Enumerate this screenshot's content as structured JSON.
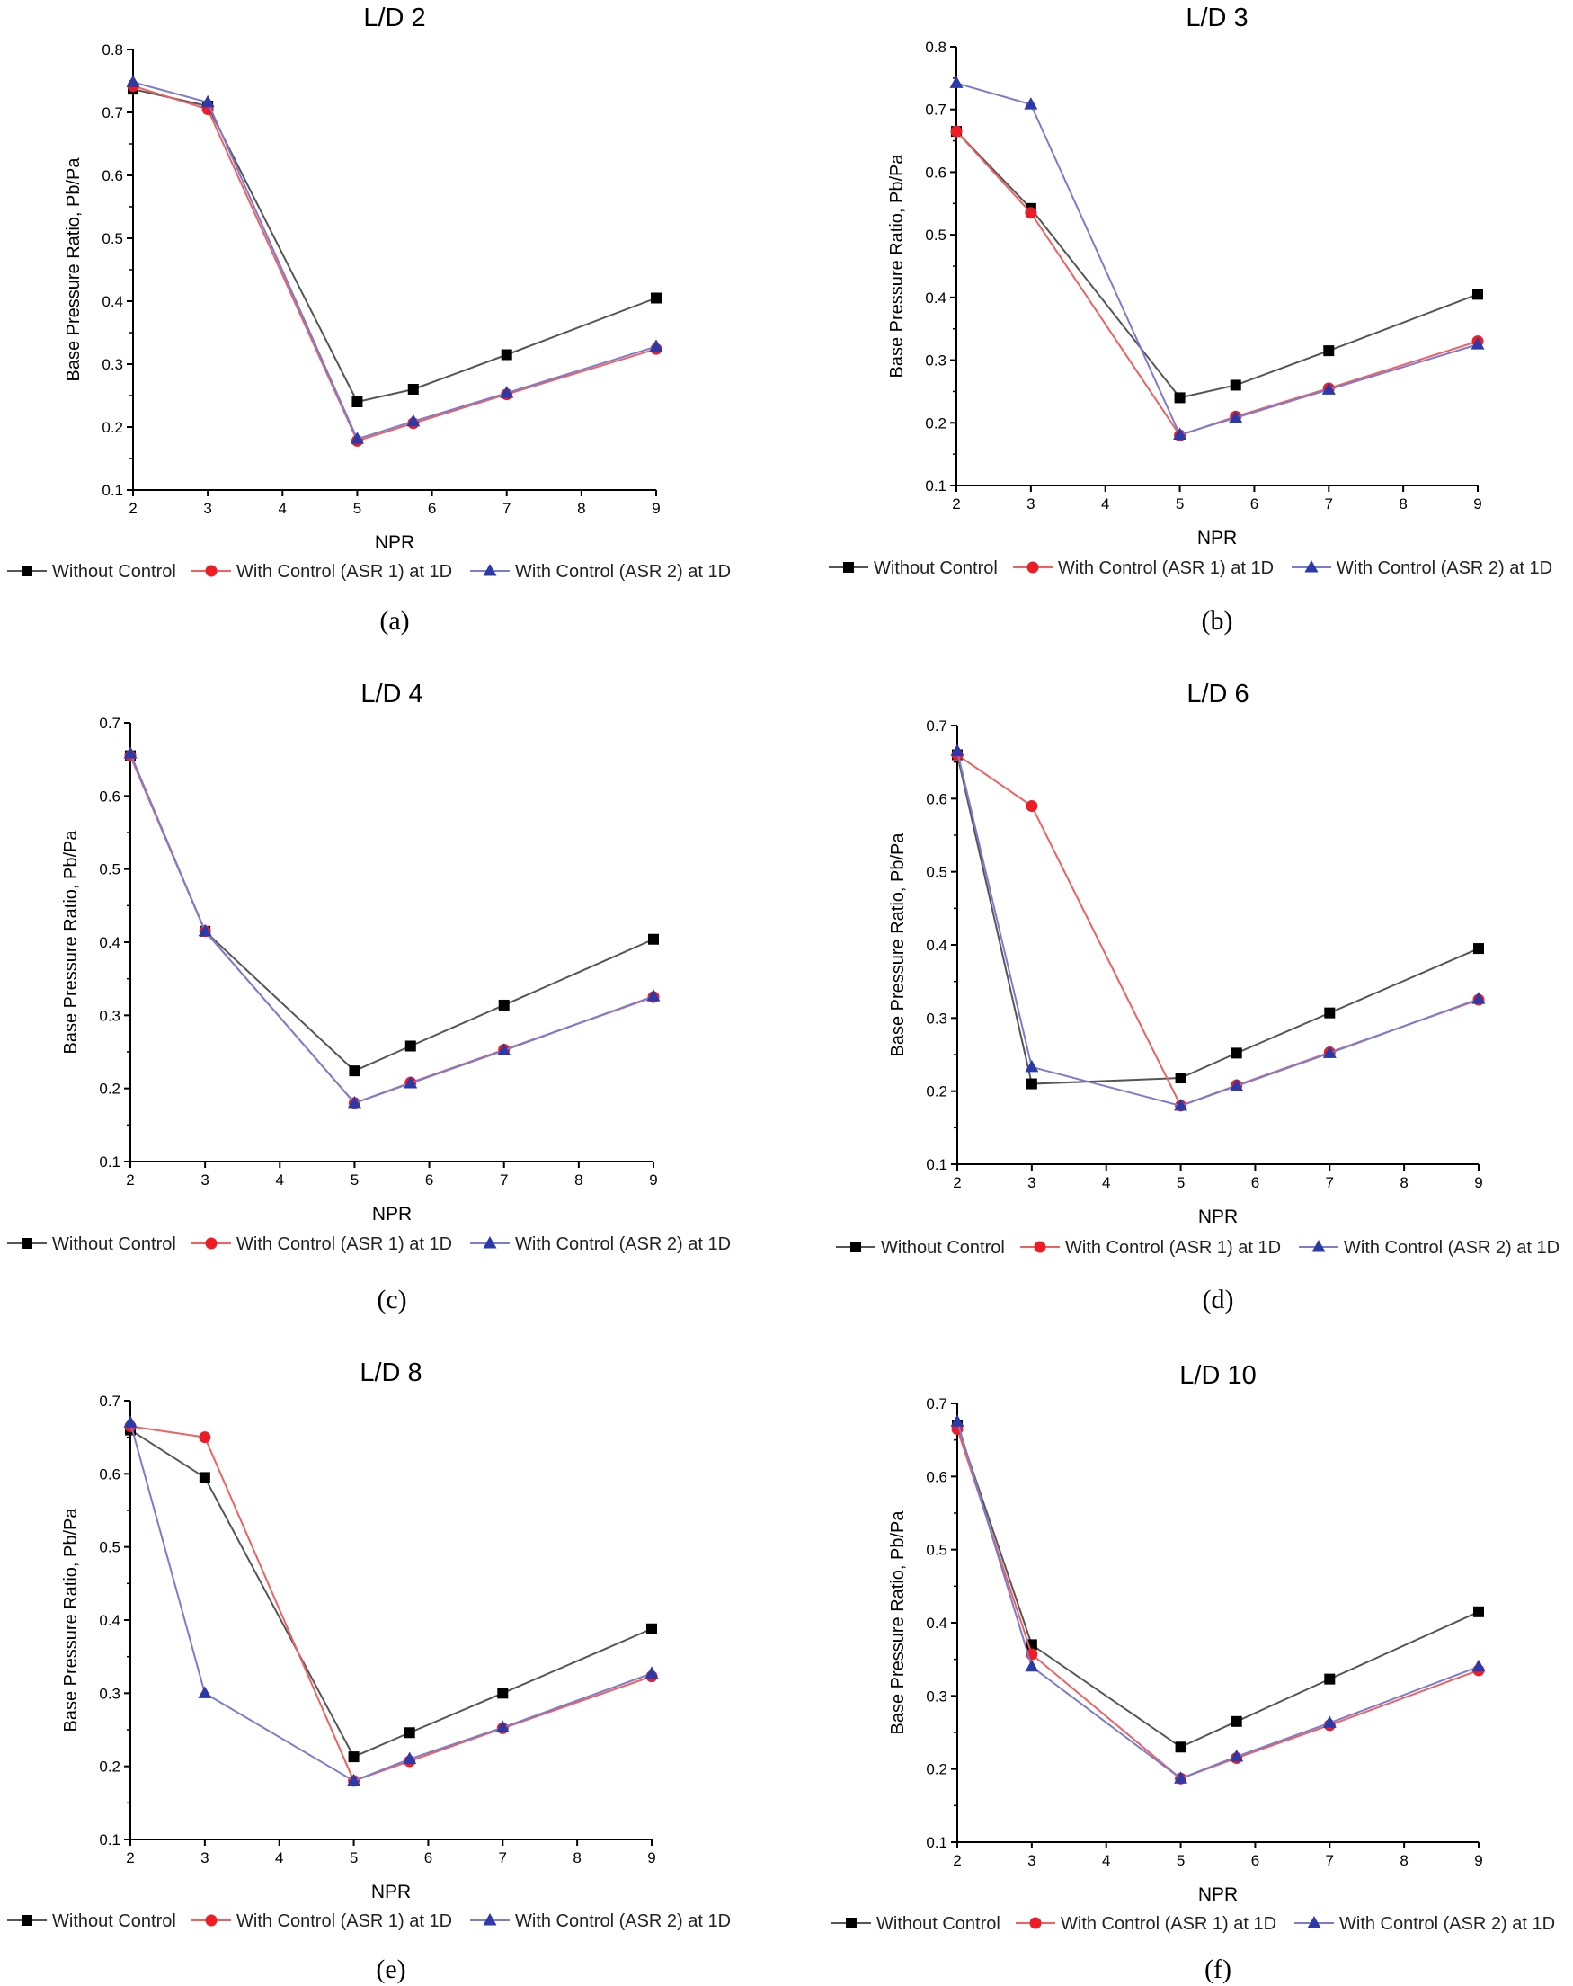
{
  "colors": {
    "without": "#000000",
    "without_line": "#555555",
    "asr1": "#ee1c25",
    "asr1_line": "#f06060",
    "asr2": "#2b3aa8",
    "asr2_line": "#7b7bd0",
    "axis": "#000000"
  },
  "legend": [
    "Without Control",
    "With Control (ASR 1) at 1D",
    "With Control (ASR 2) at 1D"
  ],
  "chart_data": [
    {
      "type": "line",
      "caption": "(a)",
      "title": "L/D 2",
      "xlabel": "NPR",
      "ylabel": "Base Pressure Ratio, Pb/Pa",
      "xlim": [
        2,
        9
      ],
      "ylim": [
        0.1,
        0.8
      ],
      "xticks": [
        2,
        3,
        4,
        5,
        6,
        7,
        8,
        9
      ],
      "yticks": [
        "0.1",
        "0.2",
        "0.3",
        "0.4",
        "0.5",
        "0.6",
        "0.7",
        "0.8"
      ],
      "x": [
        2,
        3,
        5,
        5.75,
        7,
        9
      ],
      "series": [
        {
          "name": "Without Control",
          "marker": "square",
          "values": [
            0.737,
            0.71,
            0.24,
            0.26,
            0.315,
            0.405
          ]
        },
        {
          "name": "With Control (ASR 1) at 1D",
          "marker": "circle",
          "values": [
            0.742,
            0.705,
            0.178,
            0.206,
            0.252,
            0.324
          ]
        },
        {
          "name": "With Control (ASR 2) at 1D",
          "marker": "triangle",
          "values": [
            0.748,
            0.716,
            0.181,
            0.209,
            0.254,
            0.328
          ]
        }
      ]
    },
    {
      "type": "line",
      "caption": "(b)",
      "title": "L/D 3",
      "xlabel": "NPR",
      "ylabel": "Base Pressure Ratio, Pb/Pa",
      "xlim": [
        2,
        9
      ],
      "ylim": [
        0.1,
        0.8
      ],
      "xticks": [
        2,
        3,
        4,
        5,
        6,
        7,
        8,
        9
      ],
      "yticks": [
        "0.1",
        "0.2",
        "0.3",
        "0.4",
        "0.5",
        "0.6",
        "0.7",
        "0.8"
      ],
      "x": [
        2,
        3,
        5,
        5.75,
        7,
        9
      ],
      "series": [
        {
          "name": "Without Control",
          "marker": "square",
          "values": [
            0.665,
            0.542,
            0.24,
            0.26,
            0.315,
            0.405
          ]
        },
        {
          "name": "With Control (ASR 1) at 1D",
          "marker": "circle",
          "values": [
            0.665,
            0.535,
            0.18,
            0.21,
            0.255,
            0.33
          ]
        },
        {
          "name": "With Control (ASR 2) at 1D",
          "marker": "triangle",
          "values": [
            0.742,
            0.708,
            0.181,
            0.208,
            0.253,
            0.325
          ]
        }
      ]
    },
    {
      "type": "line",
      "caption": "(c)",
      "title": "L/D 4",
      "xlabel": "NPR",
      "ylabel": "Base Pressure Ratio, Pb/Pa",
      "xlim": [
        2,
        9
      ],
      "ylim": [
        0.1,
        0.7
      ],
      "xticks": [
        2,
        3,
        4,
        5,
        6,
        7,
        8,
        9
      ],
      "yticks": [
        "0.1",
        "0.2",
        "0.3",
        "0.4",
        "0.5",
        "0.6",
        "0.7"
      ],
      "x": [
        2,
        3,
        5,
        5.75,
        7,
        9
      ],
      "series": [
        {
          "name": "Without Control",
          "marker": "square",
          "values": [
            0.655,
            0.415,
            0.224,
            0.258,
            0.314,
            0.404
          ]
        },
        {
          "name": "With Control (ASR 1) at 1D",
          "marker": "circle",
          "values": [
            0.655,
            0.415,
            0.18,
            0.208,
            0.253,
            0.325
          ]
        },
        {
          "name": "With Control (ASR 2) at 1D",
          "marker": "triangle",
          "values": [
            0.658,
            0.415,
            0.18,
            0.207,
            0.252,
            0.326
          ]
        }
      ]
    },
    {
      "type": "line",
      "caption": "(d)",
      "title": "L/D 6",
      "xlabel": "NPR",
      "ylabel": "Base Pressure Ratio, Pb/Pa",
      "xlim": [
        2,
        9
      ],
      "ylim": [
        0.1,
        0.7
      ],
      "xticks": [
        2,
        3,
        4,
        5,
        6,
        7,
        8,
        9
      ],
      "yticks": [
        "0.1",
        "0.2",
        "0.3",
        "0.4",
        "0.5",
        "0.6",
        "0.7"
      ],
      "x": [
        2,
        3,
        5,
        5.75,
        7,
        9
      ],
      "series": [
        {
          "name": "Without Control",
          "marker": "square",
          "values": [
            0.66,
            0.21,
            0.218,
            0.252,
            0.307,
            0.395
          ]
        },
        {
          "name": "With Control (ASR 1) at 1D",
          "marker": "circle",
          "values": [
            0.66,
            0.59,
            0.18,
            0.208,
            0.253,
            0.325
          ]
        },
        {
          "name": "With Control (ASR 2) at 1D",
          "marker": "triangle",
          "values": [
            0.665,
            0.233,
            0.18,
            0.207,
            0.252,
            0.326
          ]
        }
      ]
    },
    {
      "type": "line",
      "caption": "(e)",
      "title": "L/D 8",
      "xlabel": "NPR",
      "ylabel": "Base Pressure Ratio, Pb/Pa",
      "xlim": [
        2,
        9
      ],
      "ylim": [
        0.1,
        0.7
      ],
      "xticks": [
        2,
        3,
        4,
        5,
        6,
        7,
        8,
        9
      ],
      "yticks": [
        "0.1",
        "0.2",
        "0.3",
        "0.4",
        "0.5",
        "0.6",
        "0.7"
      ],
      "x": [
        2,
        3,
        5,
        5.75,
        7,
        9
      ],
      "series": [
        {
          "name": "Without Control",
          "marker": "square",
          "values": [
            0.66,
            0.595,
            0.213,
            0.246,
            0.3,
            0.388
          ]
        },
        {
          "name": "With Control (ASR 1) at 1D",
          "marker": "circle",
          "values": [
            0.665,
            0.65,
            0.18,
            0.207,
            0.252,
            0.323
          ]
        },
        {
          "name": "With Control (ASR 2) at 1D",
          "marker": "triangle",
          "values": [
            0.67,
            0.3,
            0.18,
            0.21,
            0.253,
            0.327
          ]
        }
      ]
    },
    {
      "type": "line",
      "caption": "(f)",
      "title": "L/D 10",
      "xlabel": "NPR",
      "ylabel": "Base Pressure Ratio, Pb/Pa",
      "xlim": [
        2,
        9
      ],
      "ylim": [
        0.1,
        0.7
      ],
      "xticks": [
        2,
        3,
        4,
        5,
        6,
        7,
        8,
        9
      ],
      "yticks": [
        "0.1",
        "0.2",
        "0.3",
        "0.4",
        "0.5",
        "0.6",
        "0.7"
      ],
      "x": [
        2,
        3,
        5,
        5.75,
        7,
        9
      ],
      "series": [
        {
          "name": "Without Control",
          "marker": "square",
          "values": [
            0.67,
            0.37,
            0.23,
            0.265,
            0.323,
            0.415
          ]
        },
        {
          "name": "With Control (ASR 1) at 1D",
          "marker": "circle",
          "values": [
            0.665,
            0.357,
            0.187,
            0.215,
            0.26,
            0.335
          ]
        },
        {
          "name": "With Control (ASR 2) at 1D",
          "marker": "triangle",
          "values": [
            0.675,
            0.34,
            0.187,
            0.217,
            0.263,
            0.34
          ]
        }
      ]
    }
  ]
}
